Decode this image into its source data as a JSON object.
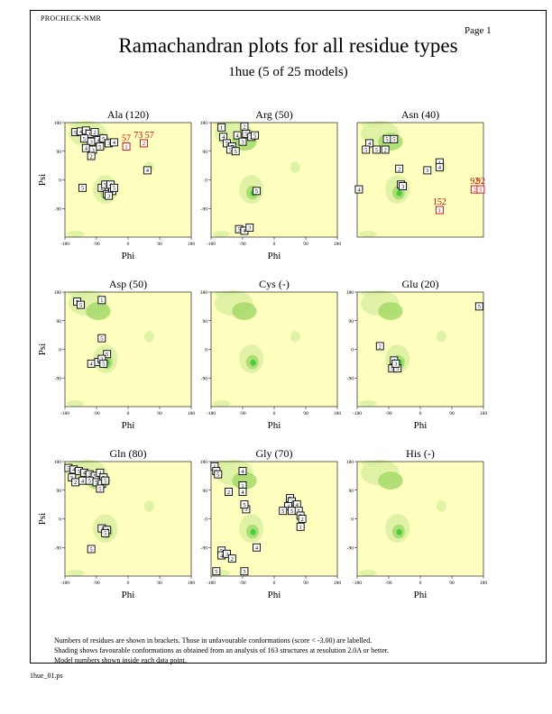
{
  "header": {
    "program": "PROCHECK-NMR",
    "page": "Page 1",
    "title": "Ramachandran plots for all residue types",
    "subtitle": "1hue (5 of 25 models)"
  },
  "footnote": {
    "lines": [
      "Numbers of residues are shown in brackets. Those in unfavourable conformations (score < -3.00) are labelled.",
      "Shading shows favourable conformations as obtained from an analysis of 163 structures at resolution 2.0A or better.",
      "Model numbers shown inside each data point."
    ]
  },
  "file_label": "1hue_01.ps",
  "colors": {
    "background_shading": "#ffffc0",
    "favourable_light": "#d9f0a0",
    "favourable_mid": "#a6d96a",
    "favourable_core": "#33cc33",
    "unfavourable_marker": "#cc0000",
    "marker": "#000000"
  },
  "chart_data": [
    {
      "type": "scatter",
      "title": "Ala (120)",
      "xlabel": "Phi",
      "ylabel": "Psi",
      "xlim": [
        -180,
        180
      ],
      "ylim": [
        -180,
        180
      ],
      "xticks": [
        -180,
        -90,
        0,
        90,
        180
      ],
      "yticks": [
        -90,
        0,
        90,
        180
      ],
      "points": [
        {
          "phi": -150,
          "psi": 150,
          "m": "5"
        },
        {
          "phi": -135,
          "psi": 152,
          "m": "4"
        },
        {
          "phi": -120,
          "psi": 155,
          "m": "3"
        },
        {
          "phi": -110,
          "psi": 145,
          "m": "1"
        },
        {
          "phi": -95,
          "psi": 150,
          "m": "2"
        },
        {
          "phi": -125,
          "psi": 130,
          "m": "5"
        },
        {
          "phi": -105,
          "psi": 120,
          "m": "3"
        },
        {
          "phi": -85,
          "psi": 125,
          "m": "4"
        },
        {
          "phi": -70,
          "psi": 130,
          "m": "5"
        },
        {
          "phi": -55,
          "psi": 115,
          "m": "3"
        },
        {
          "phi": -40,
          "psi": 118,
          "m": "4"
        },
        {
          "phi": -120,
          "psi": 100,
          "m": "4"
        },
        {
          "phi": -100,
          "psi": 95,
          "m": "3"
        },
        {
          "phi": -80,
          "psi": 105,
          "m": "5"
        },
        {
          "phi": -105,
          "psi": 75,
          "m": "2"
        },
        {
          "phi": -75,
          "psi": -25,
          "m": "2"
        },
        {
          "phi": -55,
          "psi": -30,
          "m": "5"
        },
        {
          "phi": -60,
          "psi": -45,
          "m": "5"
        },
        {
          "phi": -45,
          "psi": -35,
          "m": "5"
        },
        {
          "phi": -65,
          "psi": -15,
          "m": "5"
        },
        {
          "phi": -50,
          "psi": -15,
          "m": "4"
        },
        {
          "phi": -55,
          "psi": -50,
          "m": "3"
        },
        {
          "phi": -130,
          "psi": -25,
          "m": "5"
        },
        {
          "phi": -40,
          "psi": -25,
          "m": "5"
        },
        {
          "phi": 55,
          "psi": 30,
          "m": "4"
        },
        {
          "phi": -5,
          "psi": 105,
          "m": "1",
          "label": "57"
        },
        {
          "phi": 45,
          "psi": 115,
          "m": "2",
          "label": "73 57"
        }
      ]
    },
    {
      "type": "scatter",
      "title": "Arg (50)",
      "xlabel": "Phi",
      "ylabel": "",
      "xlim": [
        -180,
        180
      ],
      "ylim": [
        -180,
        180
      ],
      "xticks": [
        -180,
        -90,
        0,
        90,
        180
      ],
      "yticks": [
        -90,
        0,
        90,
        180
      ],
      "points": [
        {
          "phi": -150,
          "psi": 165,
          "m": "1"
        },
        {
          "phi": -85,
          "psi": 168,
          "m": "2"
        },
        {
          "phi": -145,
          "psi": 135,
          "m": "4"
        },
        {
          "phi": -105,
          "psi": 140,
          "m": "4"
        },
        {
          "phi": -80,
          "psi": 145,
          "m": "5"
        },
        {
          "phi": -65,
          "psi": 135,
          "m": "3"
        },
        {
          "phi": -55,
          "psi": 140,
          "m": "5"
        },
        {
          "phi": -135,
          "psi": 115,
          "m": "5"
        },
        {
          "phi": -120,
          "psi": 105,
          "m": "5"
        },
        {
          "phi": -90,
          "psi": 120,
          "m": "3"
        },
        {
          "phi": -125,
          "psi": 95,
          "m": "5"
        },
        {
          "phi": -110,
          "psi": 90,
          "m": "5"
        },
        {
          "phi": -50,
          "psi": -35,
          "m": "5"
        },
        {
          "phi": -100,
          "psi": -155,
          "m": "5"
        },
        {
          "phi": -85,
          "psi": -160,
          "m": "4"
        },
        {
          "phi": -70,
          "psi": -150,
          "m": "3"
        }
      ]
    },
    {
      "type": "scatter",
      "title": "Asn (40)",
      "xlabel": "",
      "ylabel": "",
      "xlim": [
        -180,
        180
      ],
      "ylim": [
        -180,
        180
      ],
      "xticks": [],
      "yticks": [],
      "points": [
        {
          "phi": -145,
          "psi": 115,
          "m": "4"
        },
        {
          "phi": -155,
          "psi": 95,
          "m": "5"
        },
        {
          "phi": -125,
          "psi": 95,
          "m": "5"
        },
        {
          "phi": -95,
          "psi": 128,
          "m": "5"
        },
        {
          "phi": -75,
          "psi": 128,
          "m": "5"
        },
        {
          "phi": -100,
          "psi": 95,
          "m": "2"
        },
        {
          "phi": -60,
          "psi": 35,
          "m": "2"
        },
        {
          "phi": -175,
          "psi": -30,
          "m": "4"
        },
        {
          "phi": -55,
          "psi": -15,
          "m": "5"
        },
        {
          "phi": -50,
          "psi": -20,
          "m": "3"
        },
        {
          "phi": 20,
          "psi": 30,
          "m": "3"
        },
        {
          "phi": 55,
          "psi": 55,
          "m": "1"
        },
        {
          "phi": 55,
          "psi": 40,
          "m": "4"
        },
        {
          "phi": 155,
          "psi": -30,
          "m": "2",
          "label": "92"
        },
        {
          "phi": 172,
          "psi": -30,
          "m": "5",
          "label": "92"
        },
        {
          "phi": 55,
          "psi": -95,
          "m": "1",
          "label": "152"
        }
      ]
    },
    {
      "type": "scatter",
      "title": "Asp (50)",
      "xlabel": "Phi",
      "ylabel": "Psi",
      "xlim": [
        -180,
        180
      ],
      "ylim": [
        -180,
        180
      ],
      "xticks": [
        -180,
        -90,
        0,
        90,
        180
      ],
      "yticks": [
        -90,
        0,
        90,
        180
      ],
      "points": [
        {
          "phi": -145,
          "psi": 150,
          "m": "5"
        },
        {
          "phi": -135,
          "psi": 140,
          "m": "5"
        },
        {
          "phi": -75,
          "psi": 155,
          "m": "1"
        },
        {
          "phi": -75,
          "psi": 35,
          "m": "5"
        },
        {
          "phi": -60,
          "psi": -15,
          "m": "5"
        },
        {
          "phi": -105,
          "psi": -45,
          "m": "4"
        },
        {
          "phi": -85,
          "psi": -40,
          "m": "5"
        },
        {
          "phi": -75,
          "psi": -30,
          "m": "3"
        },
        {
          "phi": -70,
          "psi": -45,
          "m": "5"
        }
      ]
    },
    {
      "type": "scatter",
      "title": "Cys (-)",
      "xlabel": "Phi",
      "ylabel": "",
      "xlim": [
        -180,
        180
      ],
      "ylim": [
        -180,
        180
      ],
      "xticks": [
        -180,
        -90,
        0,
        90,
        180
      ],
      "yticks": [
        -90,
        0,
        90,
        180
      ],
      "points": []
    },
    {
      "type": "scatter",
      "title": "Glu (20)",
      "xlabel": "Phi",
      "ylabel": "",
      "xlim": [
        -180,
        180
      ],
      "ylim": [
        -180,
        180
      ],
      "xticks": [
        -180,
        -90,
        0,
        90,
        180
      ],
      "yticks": [
        -90,
        0,
        90,
        180
      ],
      "points": [
        {
          "phi": -115,
          "psi": 10,
          "m": "2"
        },
        {
          "phi": -75,
          "psi": -35,
          "m": "4"
        },
        {
          "phi": -80,
          "psi": -60,
          "m": "5"
        },
        {
          "phi": -65,
          "psi": -60,
          "m": "5"
        },
        {
          "phi": -70,
          "psi": -45,
          "m": "3"
        },
        {
          "phi": 168,
          "psi": 135,
          "m": "5"
        }
      ]
    },
    {
      "type": "scatter",
      "title": "Gln (80)",
      "xlabel": "Phi",
      "ylabel": "Psi",
      "xlim": [
        -180,
        180
      ],
      "ylim": [
        -180,
        180
      ],
      "xticks": [
        -180,
        -90,
        0,
        90,
        180
      ],
      "yticks": [
        -90,
        0,
        90,
        180
      ],
      "points": [
        {
          "phi": -170,
          "psi": 160,
          "m": "5"
        },
        {
          "phi": -155,
          "psi": 155,
          "m": "4"
        },
        {
          "phi": -140,
          "psi": 150,
          "m": "5"
        },
        {
          "phi": -125,
          "psi": 145,
          "m": "4"
        },
        {
          "phi": -110,
          "psi": 140,
          "m": "2"
        },
        {
          "phi": -95,
          "psi": 135,
          "m": "5"
        },
        {
          "phi": -80,
          "psi": 145,
          "m": "4"
        },
        {
          "phi": -70,
          "psi": 130,
          "m": "5"
        },
        {
          "phi": -160,
          "psi": 130,
          "m": "5"
        },
        {
          "phi": -150,
          "psi": 115,
          "m": "2"
        },
        {
          "phi": -130,
          "psi": 120,
          "m": "4"
        },
        {
          "phi": -110,
          "psi": 120,
          "m": "5"
        },
        {
          "phi": -90,
          "psi": 115,
          "m": "5"
        },
        {
          "phi": -75,
          "psi": 110,
          "m": "3"
        },
        {
          "phi": -65,
          "psi": 120,
          "m": "5"
        },
        {
          "phi": -80,
          "psi": 95,
          "m": "5"
        },
        {
          "phi": -75,
          "psi": -30,
          "m": "3"
        },
        {
          "phi": -60,
          "psi": -35,
          "m": "4"
        },
        {
          "phi": -65,
          "psi": -45,
          "m": "5"
        },
        {
          "phi": -105,
          "psi": -95,
          "m": "5"
        }
      ]
    },
    {
      "type": "scatter",
      "title": "Gly (70)",
      "xlabel": "Phi",
      "ylabel": "",
      "xlim": [
        -180,
        180
      ],
      "ylim": [
        -180,
        180
      ],
      "xticks": [
        -180,
        -90,
        0,
        90,
        180
      ],
      "yticks": [
        -90,
        0,
        90,
        180
      ],
      "points": [
        {
          "phi": -170,
          "psi": 165,
          "m": "1"
        },
        {
          "phi": -165,
          "psi": 150,
          "m": "3"
        },
        {
          "phi": -160,
          "psi": 140,
          "m": "5"
        },
        {
          "phi": -90,
          "psi": 150,
          "m": "4"
        },
        {
          "phi": -90,
          "psi": 105,
          "m": "1"
        },
        {
          "phi": -130,
          "psi": 85,
          "m": "2"
        },
        {
          "phi": -90,
          "psi": 85,
          "m": "4"
        },
        {
          "phi": -80,
          "psi": 30,
          "m": "5"
        },
        {
          "phi": -85,
          "psi": 45,
          "m": "5"
        },
        {
          "phi": 45,
          "psi": 65,
          "m": "5"
        },
        {
          "phi": 50,
          "psi": 55,
          "m": "3"
        },
        {
          "phi": 65,
          "psi": 45,
          "m": "4"
        },
        {
          "phi": 40,
          "psi": 40,
          "m": "4"
        },
        {
          "phi": 25,
          "psi": 25,
          "m": "5"
        },
        {
          "phi": 50,
          "psi": 25,
          "m": "5"
        },
        {
          "phi": 70,
          "psi": 25,
          "m": "5"
        },
        {
          "phi": 75,
          "psi": 10,
          "m": "5"
        },
        {
          "phi": 80,
          "psi": 0,
          "m": "2"
        },
        {
          "phi": 75,
          "psi": -25,
          "m": "1"
        },
        {
          "phi": -150,
          "psi": -100,
          "m": "5"
        },
        {
          "phi": -150,
          "psi": -115,
          "m": "4"
        },
        {
          "phi": -135,
          "psi": -110,
          "m": "3"
        },
        {
          "phi": -120,
          "psi": -125,
          "m": "2"
        },
        {
          "phi": -50,
          "psi": -90,
          "m": "4"
        },
        {
          "phi": -165,
          "psi": -165,
          "m": "5"
        },
        {
          "phi": -85,
          "psi": -165,
          "m": "5"
        }
      ]
    },
    {
      "type": "scatter",
      "title": "His (-)",
      "xlabel": "Phi",
      "ylabel": "",
      "xlim": [
        -180,
        180
      ],
      "ylim": [
        -180,
        180
      ],
      "xticks": [
        -180,
        -90,
        0,
        90,
        180
      ],
      "yticks": [
        -90,
        0,
        90,
        180
      ],
      "points": []
    }
  ]
}
